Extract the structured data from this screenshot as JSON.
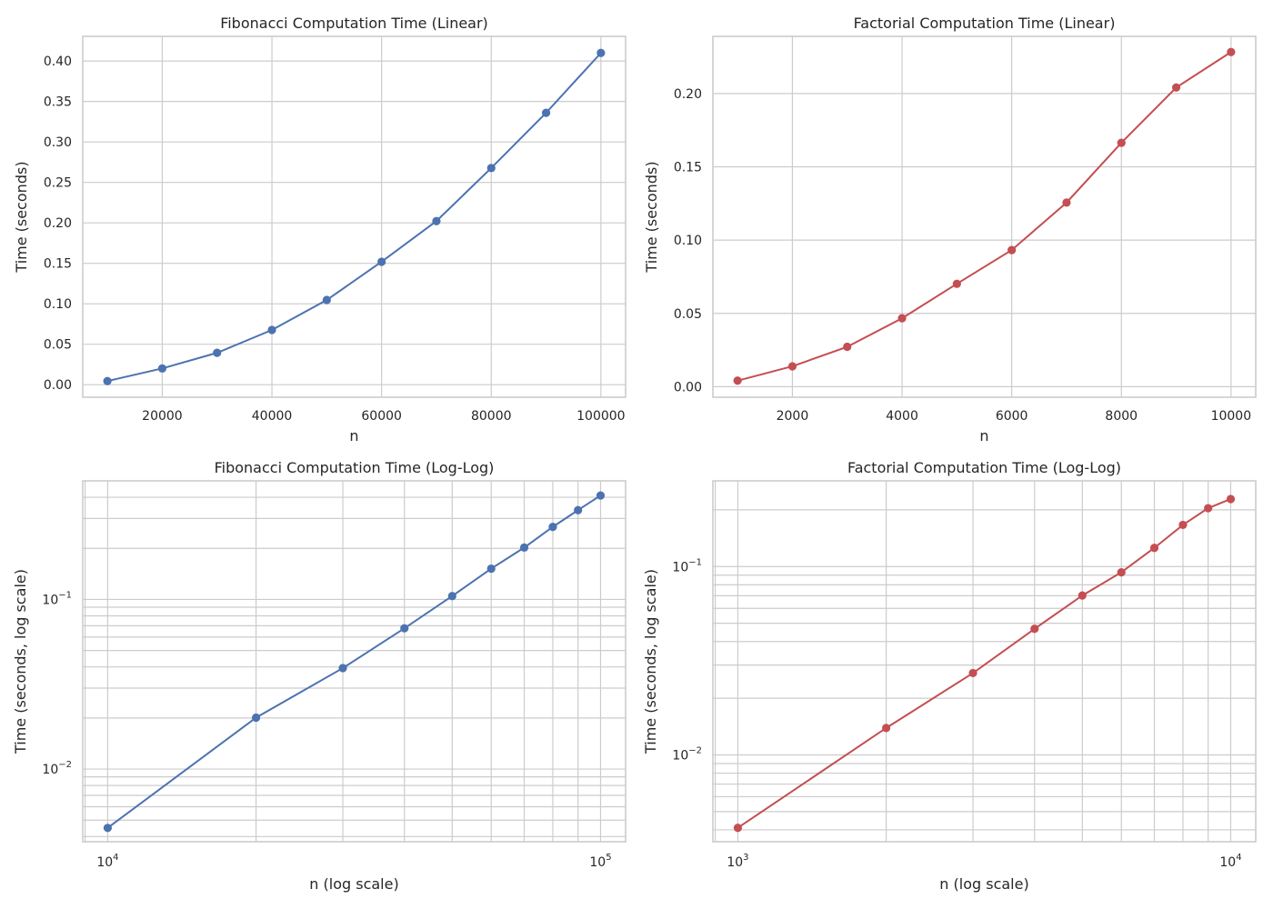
{
  "chart_data": [
    {
      "type": "line",
      "title": "Fibonacci Computation Time (Linear)",
      "xlabel": "n",
      "ylabel": "Time (seconds)",
      "x_scale": "linear",
      "y_scale": "linear",
      "xlim": [
        5500,
        104500
      ],
      "ylim": [
        -0.0155,
        0.4305
      ],
      "xticks": [
        20000,
        40000,
        60000,
        80000,
        100000
      ],
      "xtick_labels": [
        "20000",
        "40000",
        "60000",
        "80000",
        "100000"
      ],
      "yticks": [
        0.0,
        0.05,
        0.1,
        0.15,
        0.2,
        0.25,
        0.3,
        0.35,
        0.4
      ],
      "ytick_labels": [
        "0.00",
        "0.05",
        "0.10",
        "0.15",
        "0.20",
        "0.25",
        "0.30",
        "0.35",
        "0.40"
      ],
      "grid": true,
      "color": "#4c72b0",
      "series": [
        {
          "x": [
            10000,
            20000,
            30000,
            40000,
            50000,
            60000,
            70000,
            80000,
            90000,
            100000
          ],
          "y": [
            0.0045,
            0.0201,
            0.0394,
            0.0676,
            0.1047,
            0.1519,
            0.2022,
            0.2678,
            0.336,
            0.41
          ]
        }
      ]
    },
    {
      "type": "line",
      "title": "Factorial Computation Time (Linear)",
      "xlabel": "n",
      "ylabel": "Time (seconds)",
      "x_scale": "linear",
      "y_scale": "linear",
      "xlim": [
        550,
        10450
      ],
      "ylim": [
        -0.0072,
        0.239
      ],
      "xticks": [
        2000,
        4000,
        6000,
        8000,
        10000
      ],
      "xtick_labels": [
        "2000",
        "4000",
        "6000",
        "8000",
        "10000"
      ],
      "yticks": [
        0.0,
        0.05,
        0.1,
        0.15,
        0.2
      ],
      "ytick_labels": [
        "0.00",
        "0.05",
        "0.10",
        "0.15",
        "0.20"
      ],
      "grid": true,
      "color": "#c44e52",
      "series": [
        {
          "x": [
            1000,
            2000,
            3000,
            4000,
            5000,
            6000,
            7000,
            8000,
            9000,
            10000
          ],
          "y": [
            0.0041,
            0.0139,
            0.0272,
            0.0467,
            0.0702,
            0.0932,
            0.1256,
            0.1664,
            0.2041,
            0.2283
          ]
        }
      ]
    },
    {
      "type": "line",
      "title": "Fibonacci Computation Time (Log-Log)",
      "xlabel": "n (log scale)",
      "ylabel": "Time (seconds, log scale)",
      "x_scale": "log",
      "y_scale": "log",
      "xlim": [
        8900,
        112400
      ],
      "ylim": [
        0.00373,
        0.5
      ],
      "xticks": [
        10000,
        100000
      ],
      "xtick_labels": [
        [
          "10",
          "4"
        ],
        [
          "10",
          "5"
        ]
      ],
      "yticks": [
        0.01,
        0.1
      ],
      "ytick_labels": [
        [
          "10",
          "−2"
        ],
        [
          "10",
          "−1"
        ]
      ],
      "grid": true,
      "color": "#4c72b0",
      "series": [
        {
          "x": [
            10000,
            20000,
            30000,
            40000,
            50000,
            60000,
            70000,
            80000,
            90000,
            100000
          ],
          "y": [
            0.0045,
            0.0201,
            0.0394,
            0.0676,
            0.1047,
            0.1519,
            0.2022,
            0.2678,
            0.336,
            0.41
          ]
        }
      ]
    },
    {
      "type": "line",
      "title": "Factorial Computation Time (Log-Log)",
      "xlabel": "n (log scale)",
      "ylabel": "Time (seconds, log scale)",
      "x_scale": "log",
      "y_scale": "log",
      "xlim": [
        890,
        11240
      ],
      "ylim": [
        0.00346,
        0.285
      ],
      "xticks": [
        1000,
        10000
      ],
      "xtick_labels": [
        [
          "10",
          "3"
        ],
        [
          "10",
          "4"
        ]
      ],
      "yticks": [
        0.01,
        0.1
      ],
      "ytick_labels": [
        [
          "10",
          "−2"
        ],
        [
          "10",
          "−1"
        ]
      ],
      "grid": true,
      "color": "#c44e52",
      "series": [
        {
          "x": [
            1000,
            2000,
            3000,
            4000,
            5000,
            6000,
            7000,
            8000,
            9000,
            10000
          ],
          "y": [
            0.0041,
            0.0139,
            0.0272,
            0.0467,
            0.0702,
            0.0932,
            0.1256,
            0.1664,
            0.2041,
            0.2283
          ]
        }
      ]
    }
  ]
}
